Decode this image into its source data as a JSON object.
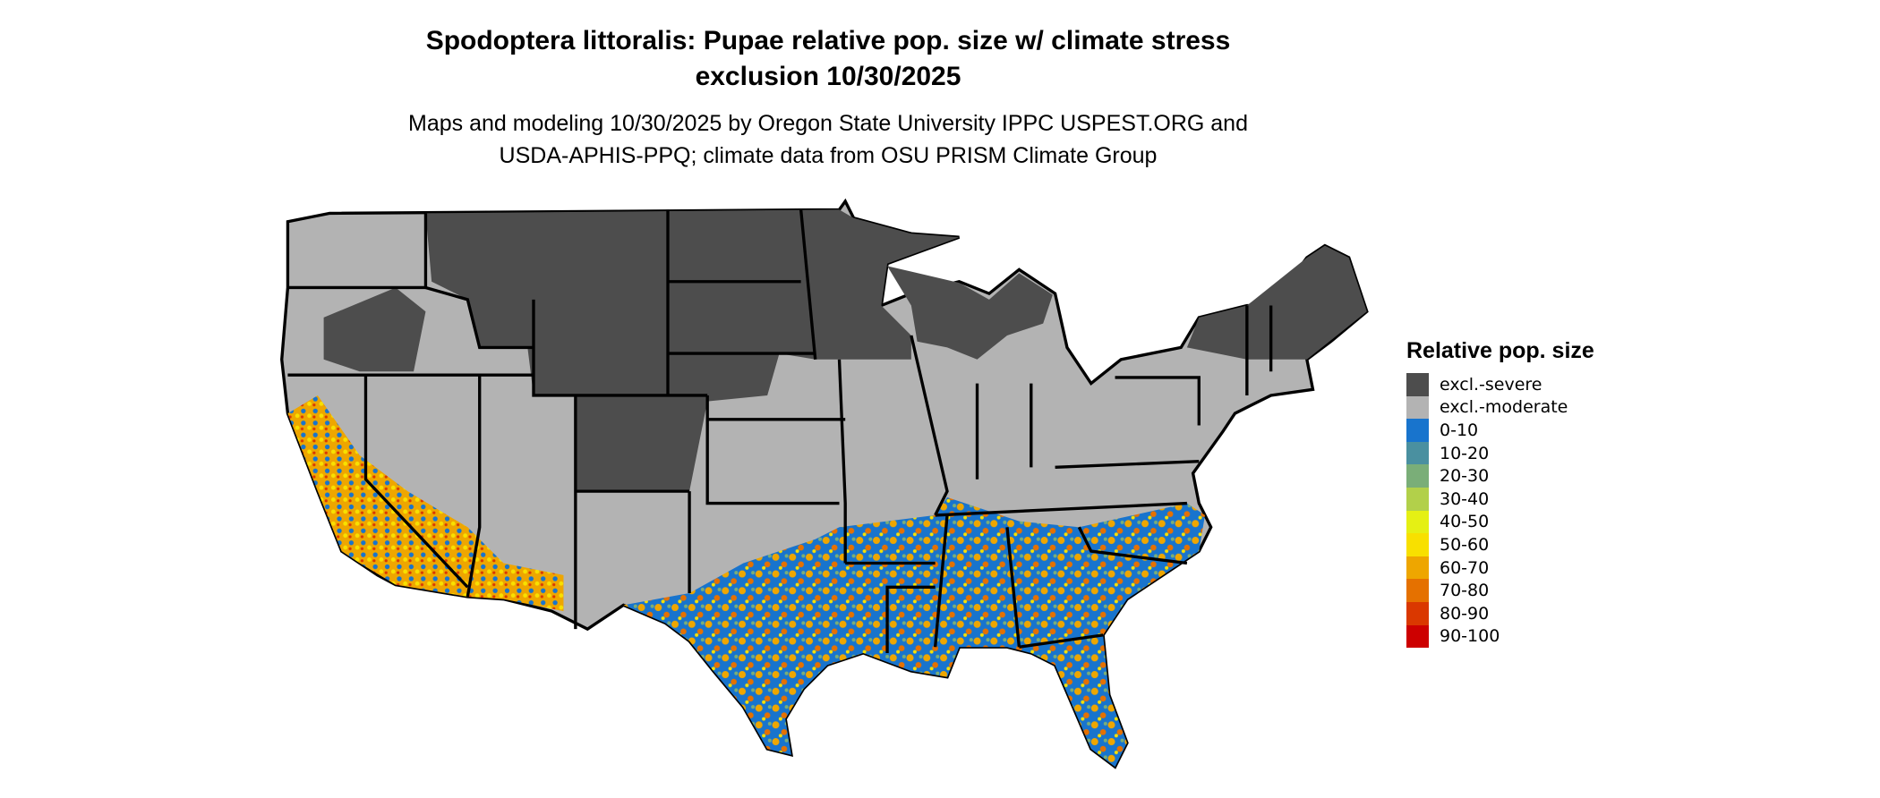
{
  "title_line1": "Spodoptera littoralis: Pupae relative pop. size w/ climate stress",
  "title_line2": "exclusion 10/30/2025",
  "subtitle_line1": "Maps and modeling 10/30/2025 by Oregon State University IPPC USPEST.ORG and",
  "subtitle_line2": "USDA-APHIS-PPQ; climate data from OSU PRISM Climate Group",
  "legend": {
    "title": "Relative pop. size",
    "items": [
      {
        "label": "excl.-severe",
        "color": "#4d4d4d"
      },
      {
        "label": "excl.-moderate",
        "color": "#b3b3b3"
      },
      {
        "label": "0-10",
        "color": "#1874cd"
      },
      {
        "label": "10-20",
        "color": "#4a90a0"
      },
      {
        "label": "20-30",
        "color": "#7aae78"
      },
      {
        "label": "30-40",
        "color": "#b2d04a"
      },
      {
        "label": "40-50",
        "color": "#e5f014"
      },
      {
        "label": "50-60",
        "color": "#f8e000"
      },
      {
        "label": "60-70",
        "color": "#eea600"
      },
      {
        "label": "70-80",
        "color": "#e57100"
      },
      {
        "label": "80-90",
        "color": "#da3800"
      },
      {
        "label": "90-100",
        "color": "#cd0000"
      }
    ]
  }
}
